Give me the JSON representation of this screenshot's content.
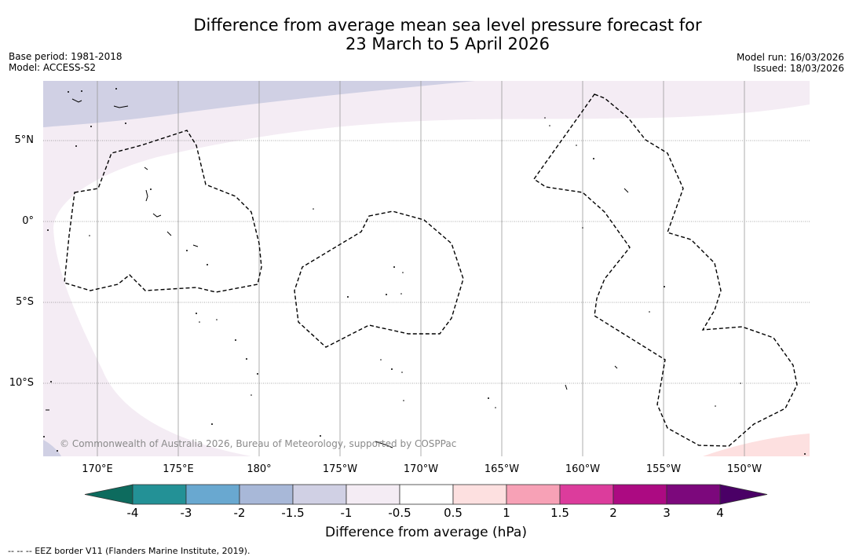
{
  "header": {
    "title_line1": "Difference from average mean sea level pressure forecast for",
    "title_line2": "23 March to 5 April 2026",
    "base_period": "Base period: 1981-2018",
    "model": "Model: ACCESS-S2",
    "model_run": "Model run: 16/03/2026",
    "issued": "Issued: 18/03/2026"
  },
  "map": {
    "latitude_labels": [
      "5°N",
      "0°",
      "5°S",
      "10°S"
    ],
    "longitude_labels": [
      "170°E",
      "175°E",
      "180°",
      "175°W",
      "170°W",
      "165°W",
      "160°W",
      "155°W",
      "150°W"
    ],
    "copyright": "© Commonwealth of Australia 2026, Bureau of Meteorology, supported by COSPPac"
  },
  "colorbar": {
    "ticks": [
      "-4",
      "-3",
      "-2",
      "-1.5",
      "-1",
      "-0.5",
      "0.5",
      "1",
      "1.5",
      "2",
      "3",
      "4"
    ],
    "colors": [
      "#0d6b5e",
      "#239196",
      "#69a8d0",
      "#a8b8d8",
      "#d0d0e4",
      "#f4ecf4",
      "#ffffff",
      "#fde0e0",
      "#f7a1b6",
      "#dc3c9c",
      "#ac0a82",
      "#7c087c",
      "#4a0066"
    ],
    "label": "Difference from average (hPa)"
  },
  "footnote": "--  --  -- EEZ border V11 (Flanders Marine Institute, 2019)."
}
